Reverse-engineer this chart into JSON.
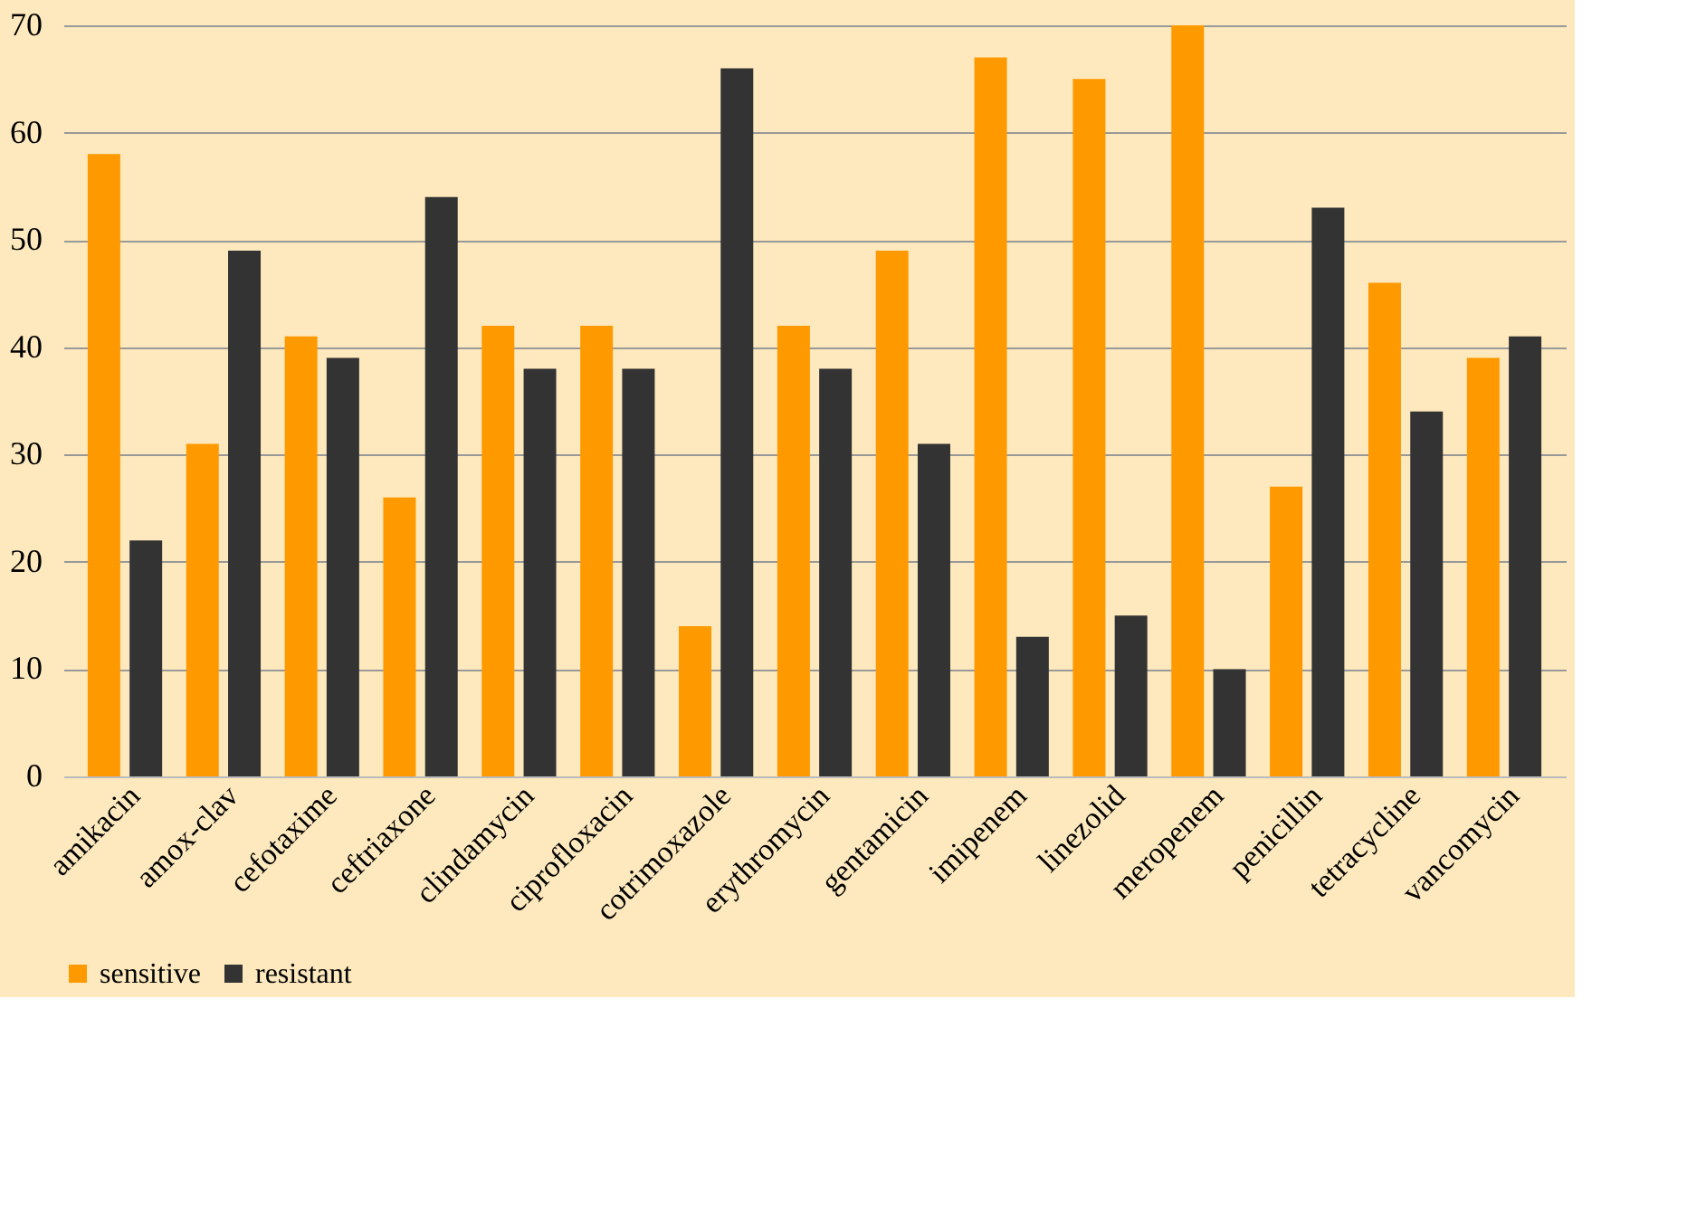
{
  "chart_data": {
    "type": "bar",
    "categories": [
      "amikacin",
      "amox-clav",
      "cefotaxime",
      "ceftriaxone",
      "clindamycin",
      "ciprofloxacin",
      "cotrimoxazole",
      "erythromycin",
      "gentamicin",
      "imipenem",
      "linezolid",
      "meropenem",
      "penicillin",
      "tetracycline",
      "vancomycin"
    ],
    "series": [
      {
        "name": "sensitive",
        "color": "#ff9900",
        "values": [
          58,
          31,
          41,
          26,
          42,
          42,
          14,
          42,
          49,
          67,
          65,
          70,
          27,
          46,
          39
        ]
      },
      {
        "name": "resistant",
        "color": "#333333",
        "values": [
          22,
          49,
          39,
          54,
          38,
          38,
          66,
          38,
          31,
          13,
          15,
          10,
          53,
          34,
          41
        ]
      }
    ],
    "ylim": [
      0,
      70
    ],
    "yticks": [
      0,
      10,
      20,
      30,
      40,
      50,
      60,
      70
    ],
    "grid": "y",
    "legend": "bottom"
  }
}
